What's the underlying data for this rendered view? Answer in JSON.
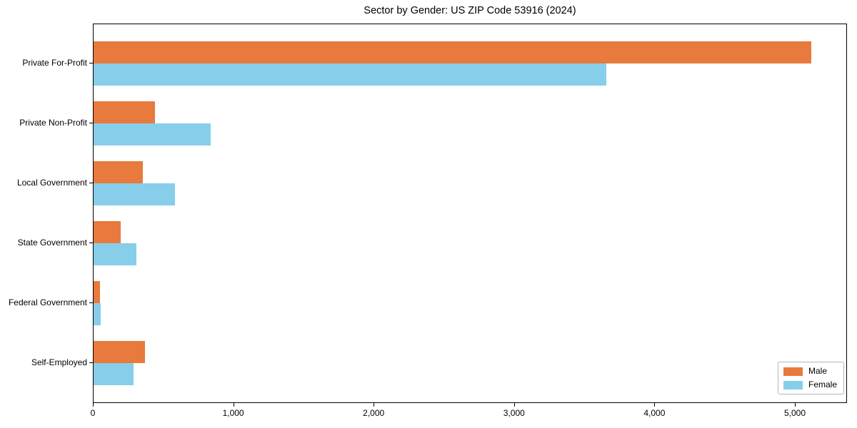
{
  "title": "Sector by Gender: US ZIP Code 53916 (2024)",
  "chart_data": {
    "type": "bar",
    "orientation": "horizontal",
    "title": "Sector by Gender: US ZIP Code 53916 (2024)",
    "categories": [
      "Private For-Profit",
      "Private Non-Profit",
      "Local Government",
      "State Government",
      "Federal Government",
      "Self-Employed"
    ],
    "series": [
      {
        "name": "Male",
        "color": "#e87a3d",
        "values": [
          5110,
          437,
          351,
          195,
          47,
          365
        ]
      },
      {
        "name": "Female",
        "color": "#87ceeb",
        "values": [
          3650,
          834,
          580,
          307,
          53,
          285
        ]
      }
    ],
    "xlabel": "",
    "ylabel": "",
    "xlim": [
      0,
      5372
    ],
    "x_ticks": [
      0,
      1000,
      2000,
      3000,
      4000,
      5000
    ],
    "x_tick_labels": [
      "0",
      "1,000",
      "2,000",
      "3,000",
      "4,000",
      "5,000"
    ],
    "grid": false,
    "legend_position": "lower right"
  }
}
